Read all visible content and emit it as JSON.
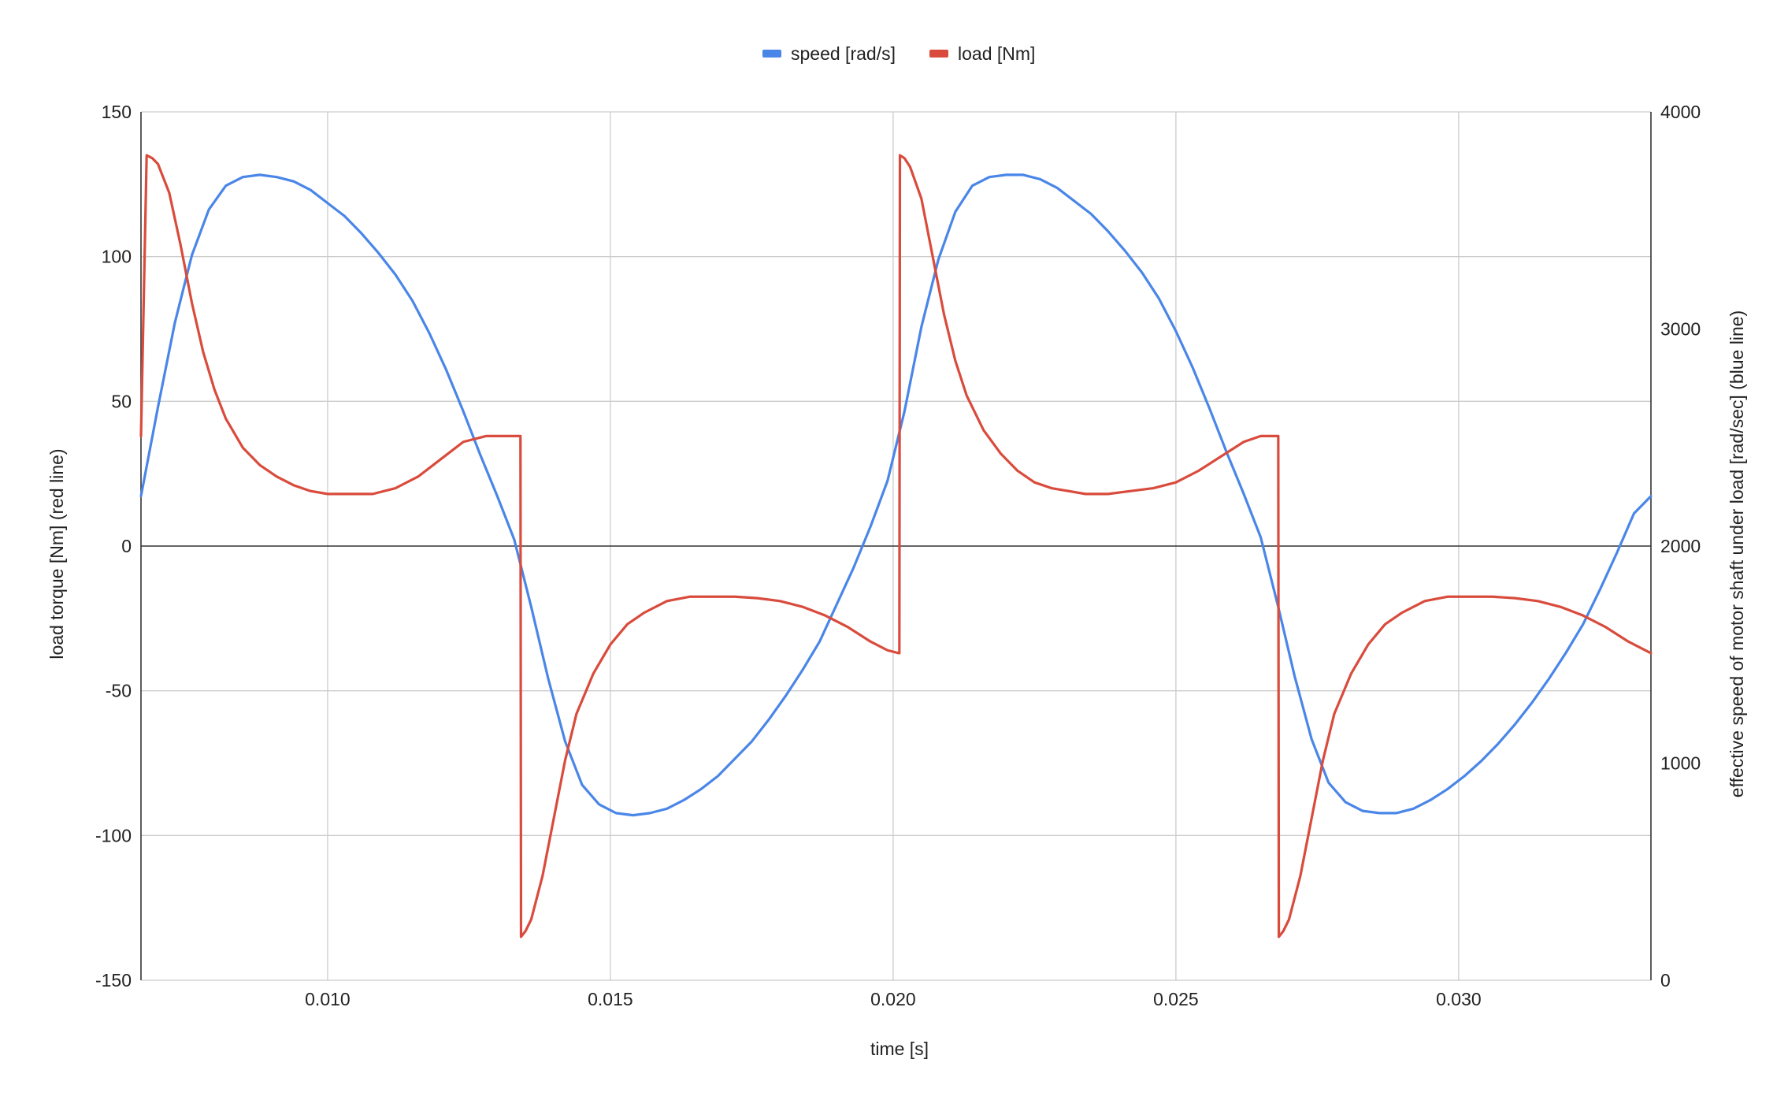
{
  "chart_data": {
    "type": "line",
    "title": "",
    "xlabel": "time [s]",
    "ylabel_left": "load torque [Nm] (red line)",
    "ylabel_right": "effective speed of motor shaft under load [rad/sec] (blue line)",
    "xlim": [
      0.0067,
      0.0334
    ],
    "ylim_left": [
      -150,
      150
    ],
    "ylim_right": [
      0,
      4000
    ],
    "x_ticks": [
      0.01,
      0.015,
      0.02,
      0.025,
      0.03
    ],
    "x_tick_labels": [
      "0.010",
      "0.015",
      "0.020",
      "0.025",
      "0.030"
    ],
    "y_left_ticks": [
      150,
      100,
      50,
      0,
      -50,
      -100,
      -150
    ],
    "y_left_tick_labels": [
      "150",
      "100",
      "50",
      "0",
      "-50",
      "-100",
      "-150"
    ],
    "y_right_ticks": [
      4000,
      3000,
      2000,
      1000,
      0
    ],
    "y_right_tick_labels": [
      "4000",
      "3000",
      "2000",
      "1000",
      "0"
    ],
    "grid": true,
    "legend_position": "top-center",
    "series": [
      {
        "name": "speed [rad/s]",
        "color": "#4a86e8",
        "axis": "right",
        "x": [
          0.0067,
          0.007,
          0.0073,
          0.0076,
          0.0079,
          0.0082,
          0.0085,
          0.0088,
          0.0091,
          0.0094,
          0.0097,
          0.01,
          0.0103,
          0.0106,
          0.0109,
          0.0112,
          0.0115,
          0.0118,
          0.0121,
          0.0124,
          0.0127,
          0.013,
          0.0133,
          0.0136,
          0.0139,
          0.0142,
          0.0145,
          0.0148,
          0.0151,
          0.0154,
          0.0157,
          0.016,
          0.0163,
          0.0166,
          0.0169,
          0.0172,
          0.0175,
          0.0178,
          0.0181,
          0.0184,
          0.0187,
          0.019,
          0.0193,
          0.0196,
          0.0199,
          0.0202,
          0.0205,
          0.0208,
          0.0211,
          0.0214,
          0.0217,
          0.022,
          0.0223,
          0.0226,
          0.0229,
          0.0232,
          0.0235,
          0.0238,
          0.0241,
          0.0244,
          0.0247,
          0.025,
          0.0253,
          0.0256,
          0.0259,
          0.0262,
          0.0265,
          0.0268,
          0.0271,
          0.0274,
          0.0277,
          0.028,
          0.0283,
          0.0286,
          0.0289,
          0.0292,
          0.0295,
          0.0298,
          0.0301,
          0.0304,
          0.0307,
          0.031,
          0.0313,
          0.0316,
          0.0319,
          0.0322,
          0.0325,
          0.0328,
          0.0331,
          0.0334
        ],
        "values": [
          2230,
          2640,
          3030,
          3340,
          3550,
          3660,
          3700,
          3710,
          3700,
          3680,
          3640,
          3580,
          3520,
          3440,
          3350,
          3250,
          3130,
          2980,
          2810,
          2620,
          2420,
          2230,
          2030,
          1720,
          1390,
          1100,
          900,
          810,
          770,
          760,
          770,
          790,
          830,
          880,
          940,
          1020,
          1100,
          1200,
          1310,
          1430,
          1560,
          1730,
          1900,
          2090,
          2300,
          2620,
          3010,
          3320,
          3540,
          3660,
          3700,
          3710,
          3710,
          3690,
          3650,
          3590,
          3530,
          3450,
          3360,
          3260,
          3140,
          2990,
          2820,
          2630,
          2430,
          2240,
          2040,
          1730,
          1400,
          1110,
          910,
          820,
          780,
          770,
          770,
          790,
          830,
          880,
          940,
          1010,
          1090,
          1180,
          1280,
          1390,
          1510,
          1640,
          1800,
          1970,
          2150,
          2230
        ]
      },
      {
        "name": "load [Nm]",
        "color": "#d94b3c",
        "axis": "left",
        "x": [
          0.0067,
          0.0068,
          0.0069,
          0.007,
          0.0072,
          0.0074,
          0.0076,
          0.0078,
          0.008,
          0.0082,
          0.0085,
          0.0088,
          0.0091,
          0.0094,
          0.0097,
          0.01,
          0.0104,
          0.0108,
          0.0112,
          0.0116,
          0.012,
          0.0124,
          0.0128,
          0.0131,
          0.0134,
          0.01341,
          0.01342,
          0.0135,
          0.0136,
          0.0138,
          0.014,
          0.0142,
          0.0144,
          0.0147,
          0.015,
          0.0153,
          0.0156,
          0.016,
          0.0164,
          0.0168,
          0.0172,
          0.0176,
          0.018,
          0.0184,
          0.0188,
          0.0192,
          0.0196,
          0.0199,
          0.0201,
          0.02011,
          0.02012,
          0.0202,
          0.0203,
          0.0205,
          0.0207,
          0.0209,
          0.0211,
          0.0213,
          0.0216,
          0.0219,
          0.0222,
          0.0225,
          0.0228,
          0.0231,
          0.0234,
          0.0238,
          0.0242,
          0.0246,
          0.025,
          0.0254,
          0.0258,
          0.0262,
          0.0265,
          0.0268,
          0.02681,
          0.02682,
          0.0269,
          0.027,
          0.0272,
          0.0274,
          0.0276,
          0.0278,
          0.0281,
          0.0284,
          0.0287,
          0.029,
          0.0294,
          0.0298,
          0.0302,
          0.0306,
          0.031,
          0.0314,
          0.0318,
          0.0322,
          0.0326,
          0.033,
          0.0334
        ],
        "values": [
          38,
          135,
          134,
          132,
          122,
          104,
          84,
          67,
          54,
          44,
          34,
          28,
          24,
          21,
          19,
          18,
          18,
          18,
          20,
          24,
          30,
          36,
          38,
          38,
          38,
          38,
          -135,
          -133,
          -129,
          -114,
          -94,
          -74,
          -58,
          -44,
          -34,
          -27,
          -23,
          -19,
          -17.5,
          -17.5,
          -17.5,
          -18,
          -19,
          -21,
          -24,
          -28,
          -33,
          -36,
          -37,
          -37,
          135,
          134,
          131,
          120,
          100,
          80,
          64,
          52,
          40,
          32,
          26,
          22,
          20,
          19,
          18,
          18,
          19,
          20,
          22,
          26,
          31,
          36,
          38,
          38,
          38,
          -135,
          -133,
          -129,
          -114,
          -94,
          -74,
          -58,
          -44,
          -34,
          -27,
          -23,
          -19,
          -17.5,
          -17.5,
          -17.5,
          -18,
          -19,
          -21,
          -24,
          -28,
          -33,
          -37
        ]
      }
    ]
  }
}
